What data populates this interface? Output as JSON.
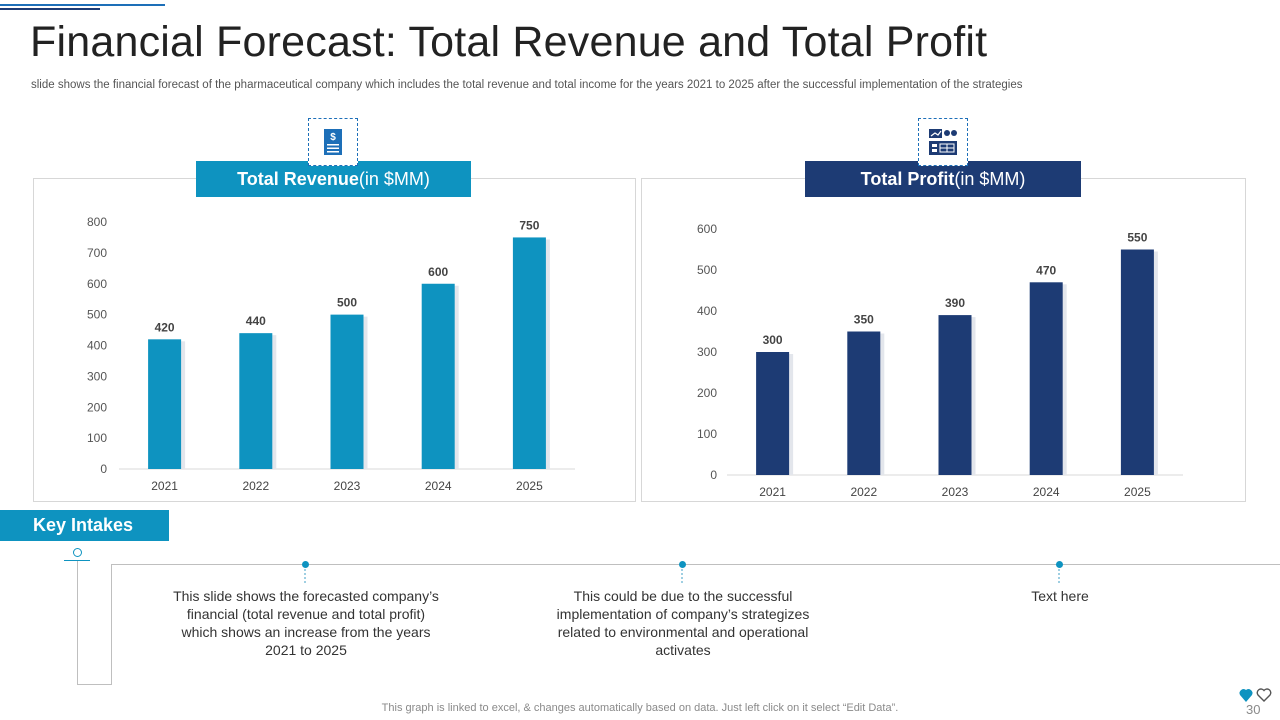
{
  "slide": {
    "title": "Financial Forecast: Total Revenue and Total Profit",
    "subtitle": "slide shows the financial forecast of the pharmaceutical company which includes the total revenue  and total income for the years 2021 to 2025 after the successful implementation of the strategies",
    "page_number": "30",
    "footer_note": "This graph is linked to excel, & changes automatically based on data. Just left click on it select “Edit Data”."
  },
  "revenue_header": {
    "bold": "Total Revenue",
    "rest": "(in $MM)"
  },
  "profit_header": {
    "bold": "Total Profit",
    "rest": " (in $MM)"
  },
  "key_intakes": {
    "title": "Key Intakes",
    "items": [
      "This slide shows the forecasted company’s financial (total revenue and total profit) which shows an increase from the years 2021 to 2025",
      "This could be due to the successful implementation of company’s strategizes related to environmental and operational activates",
      "Text here"
    ]
  },
  "colors": {
    "revenue": "#0e93c0",
    "profit": "#1d3b74",
    "accent": "#1d6fb8"
  },
  "icons": {
    "revenue": "dollar-document-icon",
    "profit": "dashboard-chart-icon",
    "logo": "heart-logo-icon"
  },
  "chart_data": [
    {
      "type": "bar",
      "title": "Total Revenue(in $MM)",
      "categories": [
        "2021",
        "2022",
        "2023",
        "2024",
        "2025"
      ],
      "values": [
        420,
        440,
        500,
        600,
        750
      ],
      "ylim": [
        0,
        800
      ],
      "yticks": [
        0,
        100,
        200,
        300,
        400,
        500,
        600,
        700,
        800
      ],
      "data_labels": true,
      "grid": false,
      "color": "#0e93c0"
    },
    {
      "type": "bar",
      "title": "Total Profit (in $MM)",
      "categories": [
        "2021",
        "2022",
        "2023",
        "2024",
        "2025"
      ],
      "values": [
        300,
        350,
        390,
        470,
        550
      ],
      "ylim": [
        0,
        600
      ],
      "yticks": [
        0,
        100,
        200,
        300,
        400,
        500,
        600
      ],
      "data_labels": true,
      "grid": false,
      "color": "#1d3b74"
    }
  ]
}
